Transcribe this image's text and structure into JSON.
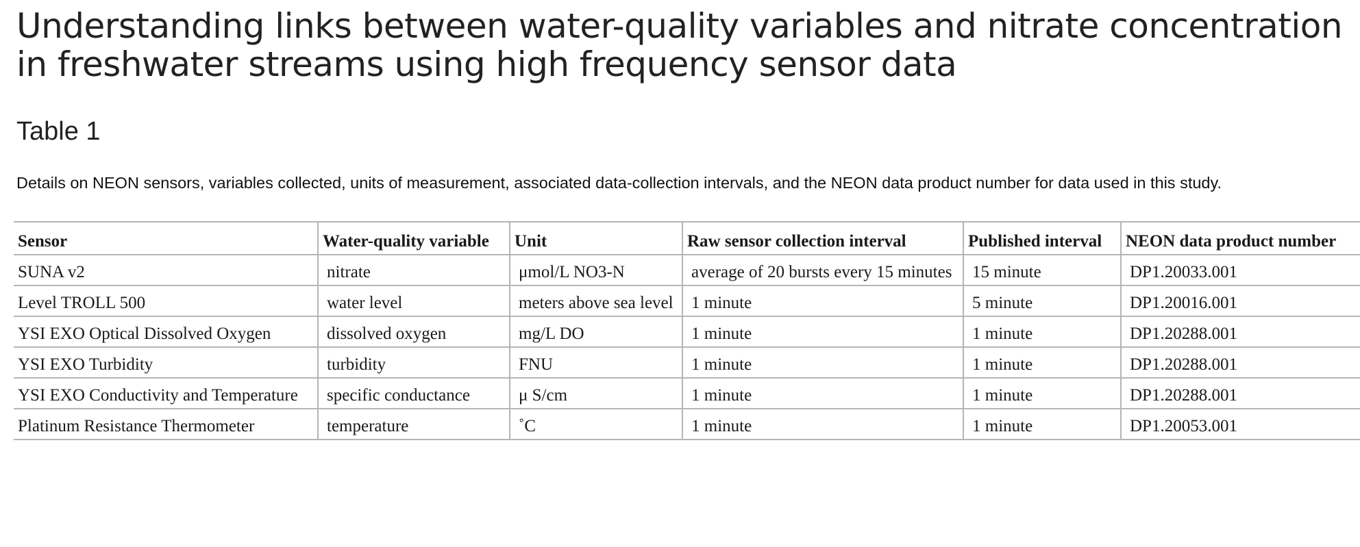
{
  "article": {
    "title": "Understanding links between water-quality variables and nitrate concentration in freshwater streams using high frequency sensor data"
  },
  "table": {
    "label": "Table 1",
    "caption": "Details on NEON sensors, variables collected, units of measurement, associated data-collection intervals, and the NEON data product number for data used in this study.",
    "columns": [
      "Sensor",
      "Water-quality variable",
      "Unit",
      "Raw sensor collection interval",
      "Published interval",
      "NEON data product number"
    ],
    "rows": [
      [
        "SUNA v2",
        "nitrate",
        "μmol/L NO3-N",
        "average of 20 bursts every 15 minutes",
        "15 minute",
        "DP1.20033.001"
      ],
      [
        "Level TROLL 500",
        "water level",
        "meters above sea level",
        "1 minute",
        "5 minute",
        "DP1.20016.001"
      ],
      [
        "YSI EXO Optical Dissolved Oxygen",
        "dissolved oxygen",
        "mg/L DO",
        "1 minute",
        "1 minute",
        "DP1.20288.001"
      ],
      [
        "YSI EXO Turbidity",
        "turbidity",
        "FNU",
        "1 minute",
        "1 minute",
        "DP1.20288.001"
      ],
      [
        "YSI EXO Conductivity and Temperature",
        "specific conductance",
        "μ S/cm",
        "1 minute",
        "1 minute",
        "DP1.20288.001"
      ],
      [
        "Platinum Resistance Thermometer",
        "temperature",
        "˚C",
        "1 minute",
        "1 minute",
        "DP1.20053.001"
      ]
    ]
  },
  "colors": {
    "text": "#222222",
    "rule": "#b5b5b5",
    "background": "#ffffff"
  }
}
